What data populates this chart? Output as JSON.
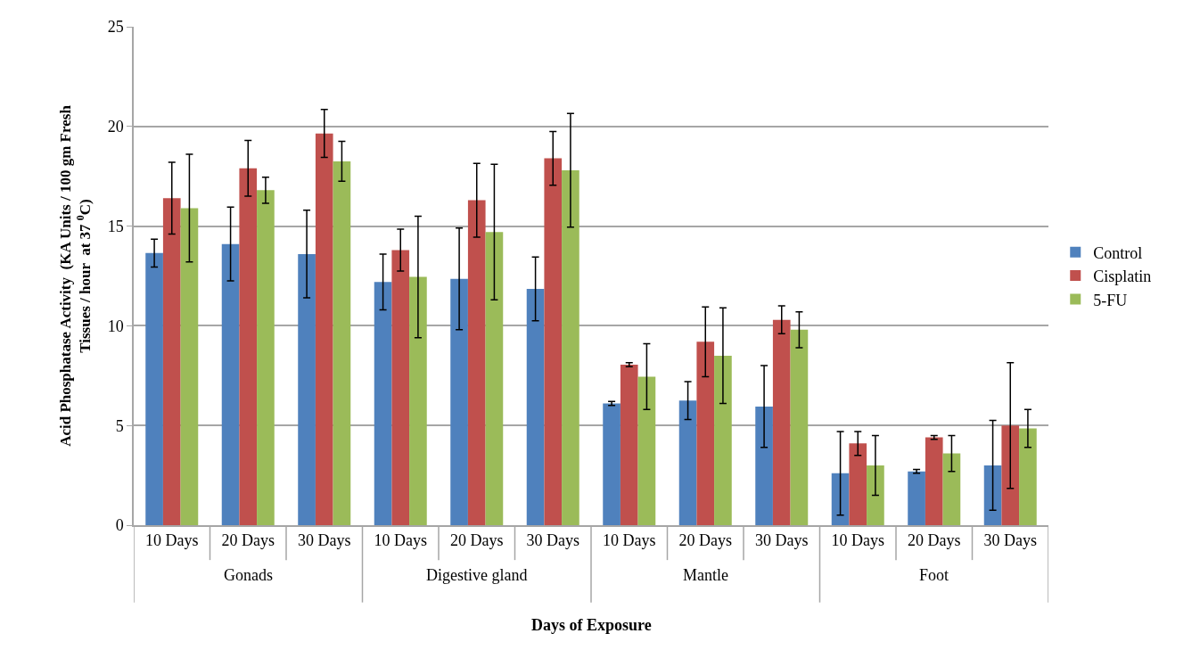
{
  "chart_data": {
    "type": "bar",
    "xlabel": "Days of Exposure",
    "ylabel": "Acid Phosphatase Activity  (KA Units / 100 gm Fresh\nTissues / hour  at 37 $^{0}$C)",
    "categories": [
      "10 Days",
      "20 Days",
      "30 Days",
      "10 Days",
      "20 Days",
      "30 Days",
      "10 Days",
      "20 Days",
      "30 Days",
      "10 Days",
      "20 Days",
      "30 Days"
    ],
    "annotations": [
      "Gonads",
      "Digestive gland",
      "Mantle",
      "Foot"
    ],
    "series": [
      {
        "name": "Control",
        "color": "#4f81bd",
        "values": [
          13.65,
          14.1,
          13.6,
          12.2,
          12.35,
          11.85,
          6.1,
          6.25,
          5.95,
          2.6,
          2.7,
          3.0
        ],
        "errors": [
          0.7,
          1.85,
          2.2,
          1.4,
          2.55,
          1.6,
          0.1,
          0.95,
          2.05,
          2.1,
          0.1,
          2.25
        ]
      },
      {
        "name": "Cisplatin",
        "color": "#c0504d",
        "values": [
          16.4,
          17.9,
          19.65,
          13.8,
          16.3,
          18.4,
          8.05,
          9.2,
          10.3,
          4.1,
          4.4,
          5.0
        ],
        "errors": [
          1.8,
          1.4,
          1.2,
          1.05,
          1.85,
          1.35,
          0.1,
          1.75,
          0.7,
          0.6,
          0.1,
          3.15
        ]
      },
      {
        "name": "5-FU",
        "color": "#9bbb59",
        "values": [
          15.9,
          16.8,
          18.25,
          12.45,
          14.7,
          17.8,
          7.45,
          8.5,
          9.8,
          3.0,
          3.6,
          4.85
        ],
        "errors": [
          2.7,
          0.65,
          1.0,
          3.05,
          3.4,
          2.85,
          1.65,
          2.4,
          0.9,
          1.5,
          0.9,
          0.95
        ]
      }
    ],
    "ylim": [
      0,
      25
    ],
    "yticks": [
      0,
      5,
      10,
      15,
      20,
      25
    ],
    "grid": "y",
    "legend": "right"
  }
}
